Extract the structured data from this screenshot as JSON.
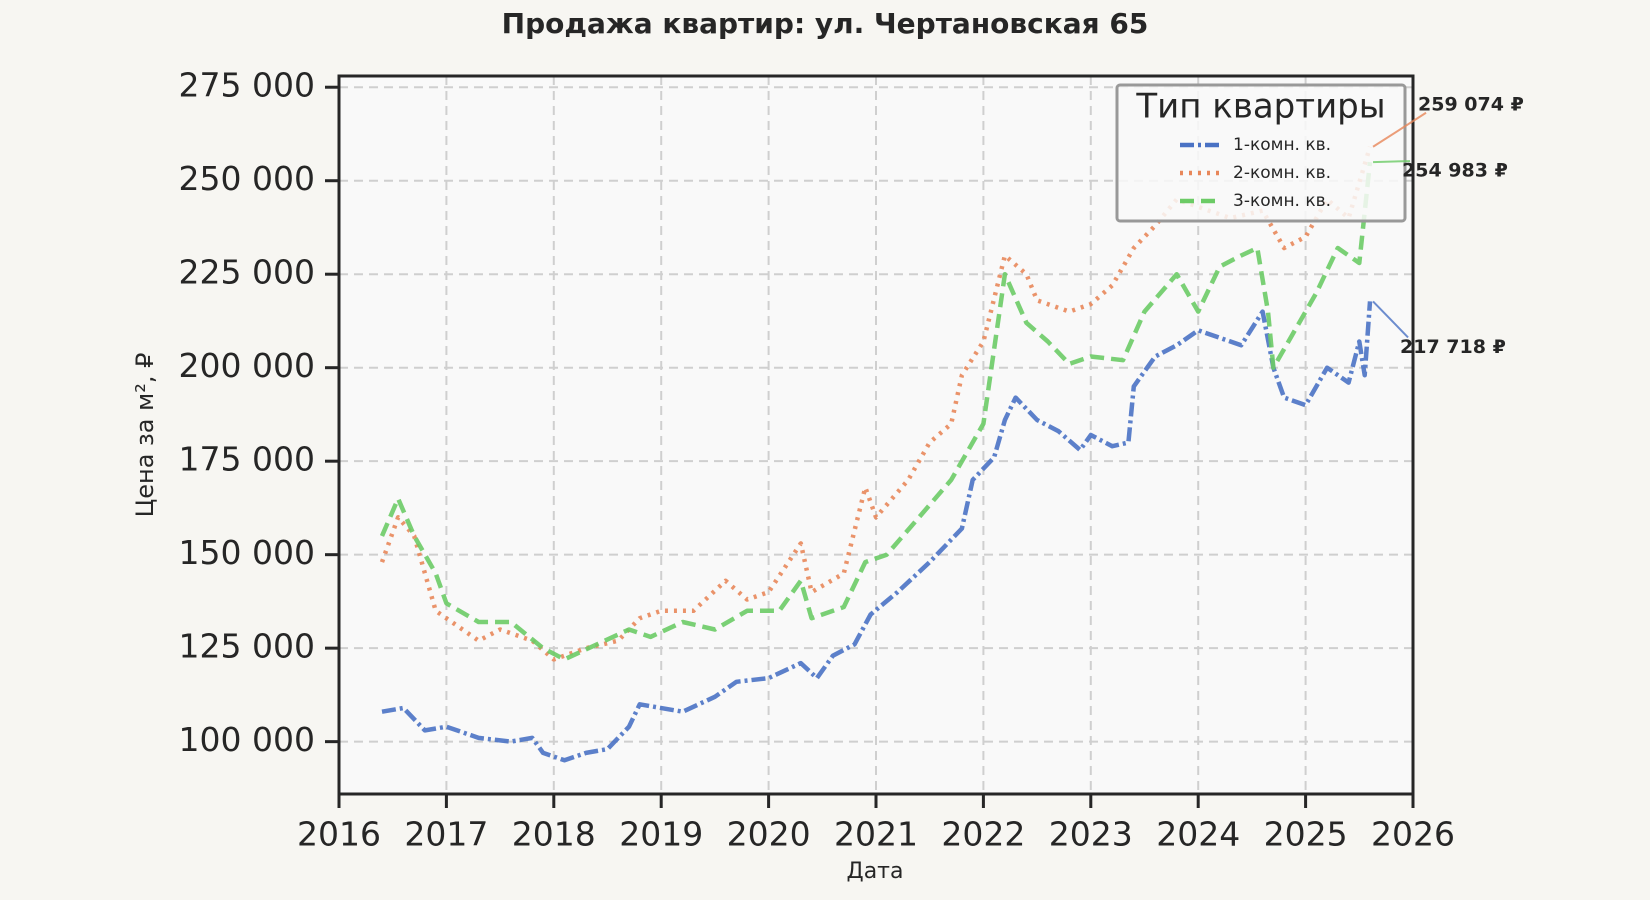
{
  "chart_data": {
    "type": "line",
    "title": "Продажа квартир: ул. Чертановская 65",
    "x_label": "Дата",
    "y_label": "Цена за м², ₽",
    "xlim": [
      2016,
      2026
    ],
    "xticks": [
      2016,
      2017,
      2018,
      2019,
      2020,
      2021,
      2022,
      2023,
      2024,
      2025,
      2026
    ],
    "ylim": [
      86000,
      278000
    ],
    "yticks": [
      {
        "value": 100000,
        "label": "100 000"
      },
      {
        "value": 125000,
        "label": "125 000"
      },
      {
        "value": 150000,
        "label": "150 000"
      },
      {
        "value": 175000,
        "label": "175 000"
      },
      {
        "value": 200000,
        "label": "200 000"
      },
      {
        "value": 225000,
        "label": "225 000"
      },
      {
        "value": 250000,
        "label": "250 000"
      },
      {
        "value": 275000,
        "label": "275 000"
      }
    ],
    "grid": true,
    "legend": {
      "title": "Тип квартиры",
      "position": "upper right"
    },
    "series": [
      {
        "name": "1-комн. кв.",
        "color": "#4a72c4",
        "style": "dashdot",
        "x": [
          2016.4,
          2016.6,
          2016.8,
          2017.0,
          2017.3,
          2017.6,
          2017.8,
          2017.9,
          2018.1,
          2018.3,
          2018.5,
          2018.7,
          2018.8,
          2019.2,
          2019.5,
          2019.7,
          2020.0,
          2020.3,
          2020.45,
          2020.6,
          2020.8,
          2020.95,
          2021.2,
          2021.5,
          2021.8,
          2021.9,
          2022.1,
          2022.2,
          2022.3,
          2022.5,
          2022.7,
          2022.9,
          2023.0,
          2023.2,
          2023.35,
          2023.4,
          2023.6,
          2023.8,
          2024.0,
          2024.2,
          2024.4,
          2024.6,
          2024.7,
          2024.8,
          2025.0,
          2025.2,
          2025.4,
          2025.5,
          2025.55,
          2025.6
        ],
        "values": [
          108000,
          109000,
          103000,
          104000,
          101000,
          100000,
          101000,
          97000,
          95000,
          97000,
          98000,
          104000,
          110000,
          108000,
          112000,
          116000,
          117000,
          121000,
          117000,
          123000,
          126000,
          134000,
          140000,
          148000,
          157000,
          170000,
          176000,
          186000,
          192000,
          186000,
          183000,
          178000,
          182000,
          179000,
          180000,
          195000,
          203000,
          206000,
          210000,
          208000,
          206000,
          215000,
          200000,
          192000,
          190000,
          200000,
          196000,
          207000,
          198000,
          217718
        ],
        "value_labels": [
          null,
          null,
          null,
          null,
          null,
          null,
          null,
          null,
          null,
          null,
          null,
          null,
          null,
          null,
          null,
          null,
          null,
          null,
          null,
          null,
          null,
          null,
          null,
          null,
          null,
          null,
          null,
          null,
          null,
          null,
          null,
          null,
          null,
          null,
          null,
          null,
          null,
          null,
          null,
          null,
          null,
          null,
          null,
          null,
          null,
          null,
          null,
          null,
          null,
          "217 718 ₽"
        ]
      },
      {
        "name": "2-комн. кв.",
        "color": "#e8875a",
        "style": "dotted",
        "x": [
          2016.4,
          2016.55,
          2016.7,
          2016.9,
          2017.1,
          2017.3,
          2017.5,
          2017.8,
          2018.0,
          2018.3,
          2018.6,
          2018.8,
          2019.0,
          2019.3,
          2019.6,
          2019.8,
          2020.0,
          2020.3,
          2020.4,
          2020.7,
          2020.9,
          2021.0,
          2021.3,
          2021.5,
          2021.7,
          2021.8,
          2022.0,
          2022.2,
          2022.4,
          2022.5,
          2022.8,
          2023.0,
          2023.2,
          2023.4,
          2023.6,
          2023.8,
          2024.0,
          2024.3,
          2024.6,
          2024.8,
          2025.0,
          2025.2,
          2025.4,
          2025.6
        ],
        "values": [
          148000,
          160000,
          155000,
          135000,
          131000,
          127000,
          130000,
          127000,
          122000,
          125000,
          127000,
          133000,
          135000,
          135000,
          143000,
          138000,
          140000,
          153000,
          140000,
          145000,
          168000,
          160000,
          170000,
          180000,
          185000,
          198000,
          207000,
          230000,
          225000,
          218000,
          215000,
          217000,
          222000,
          232000,
          238000,
          245000,
          243000,
          240000,
          242000,
          232000,
          235000,
          245000,
          240000,
          259074
        ],
        "value_labels": [
          null,
          null,
          null,
          null,
          null,
          null,
          null,
          null,
          null,
          null,
          null,
          null,
          null,
          null,
          null,
          null,
          null,
          null,
          null,
          null,
          null,
          null,
          null,
          null,
          null,
          null,
          null,
          null,
          null,
          null,
          null,
          null,
          null,
          null,
          null,
          null,
          null,
          null,
          null,
          null,
          null,
          null,
          null,
          "259 074 ₽"
        ]
      },
      {
        "name": "3-комн. кв.",
        "color": "#6ccb66",
        "style": "dashed",
        "x": [
          2016.4,
          2016.55,
          2016.7,
          2016.9,
          2017.0,
          2017.3,
          2017.6,
          2017.9,
          2018.1,
          2018.4,
          2018.7,
          2018.9,
          2019.2,
          2019.5,
          2019.8,
          2020.1,
          2020.3,
          2020.4,
          2020.7,
          2020.9,
          2021.1,
          2021.4,
          2021.7,
          2022.0,
          2022.2,
          2022.4,
          2022.6,
          2022.8,
          2023.0,
          2023.3,
          2023.5,
          2023.8,
          2024.0,
          2024.2,
          2024.4,
          2024.55,
          2024.65,
          2024.7,
          2024.9,
          2025.1,
          2025.3,
          2025.5,
          2025.6
        ],
        "values": [
          155000,
          165000,
          155000,
          145000,
          137000,
          132000,
          132000,
          125000,
          122000,
          126000,
          130000,
          128000,
          132000,
          130000,
          135000,
          135000,
          143000,
          133000,
          136000,
          148000,
          150000,
          160000,
          170000,
          185000,
          225000,
          212000,
          207000,
          201000,
          203000,
          202000,
          215000,
          225000,
          215000,
          227000,
          230000,
          232000,
          215000,
          200000,
          210000,
          220000,
          232000,
          228000,
          254983
        ],
        "value_labels": [
          null,
          null,
          null,
          null,
          null,
          null,
          null,
          null,
          null,
          null,
          null,
          null,
          null,
          null,
          null,
          null,
          null,
          null,
          null,
          null,
          null,
          null,
          null,
          null,
          null,
          null,
          null,
          null,
          null,
          null,
          null,
          null,
          null,
          null,
          null,
          null,
          null,
          null,
          null,
          null,
          null,
          null,
          "254 983 ₽"
        ]
      }
    ]
  }
}
